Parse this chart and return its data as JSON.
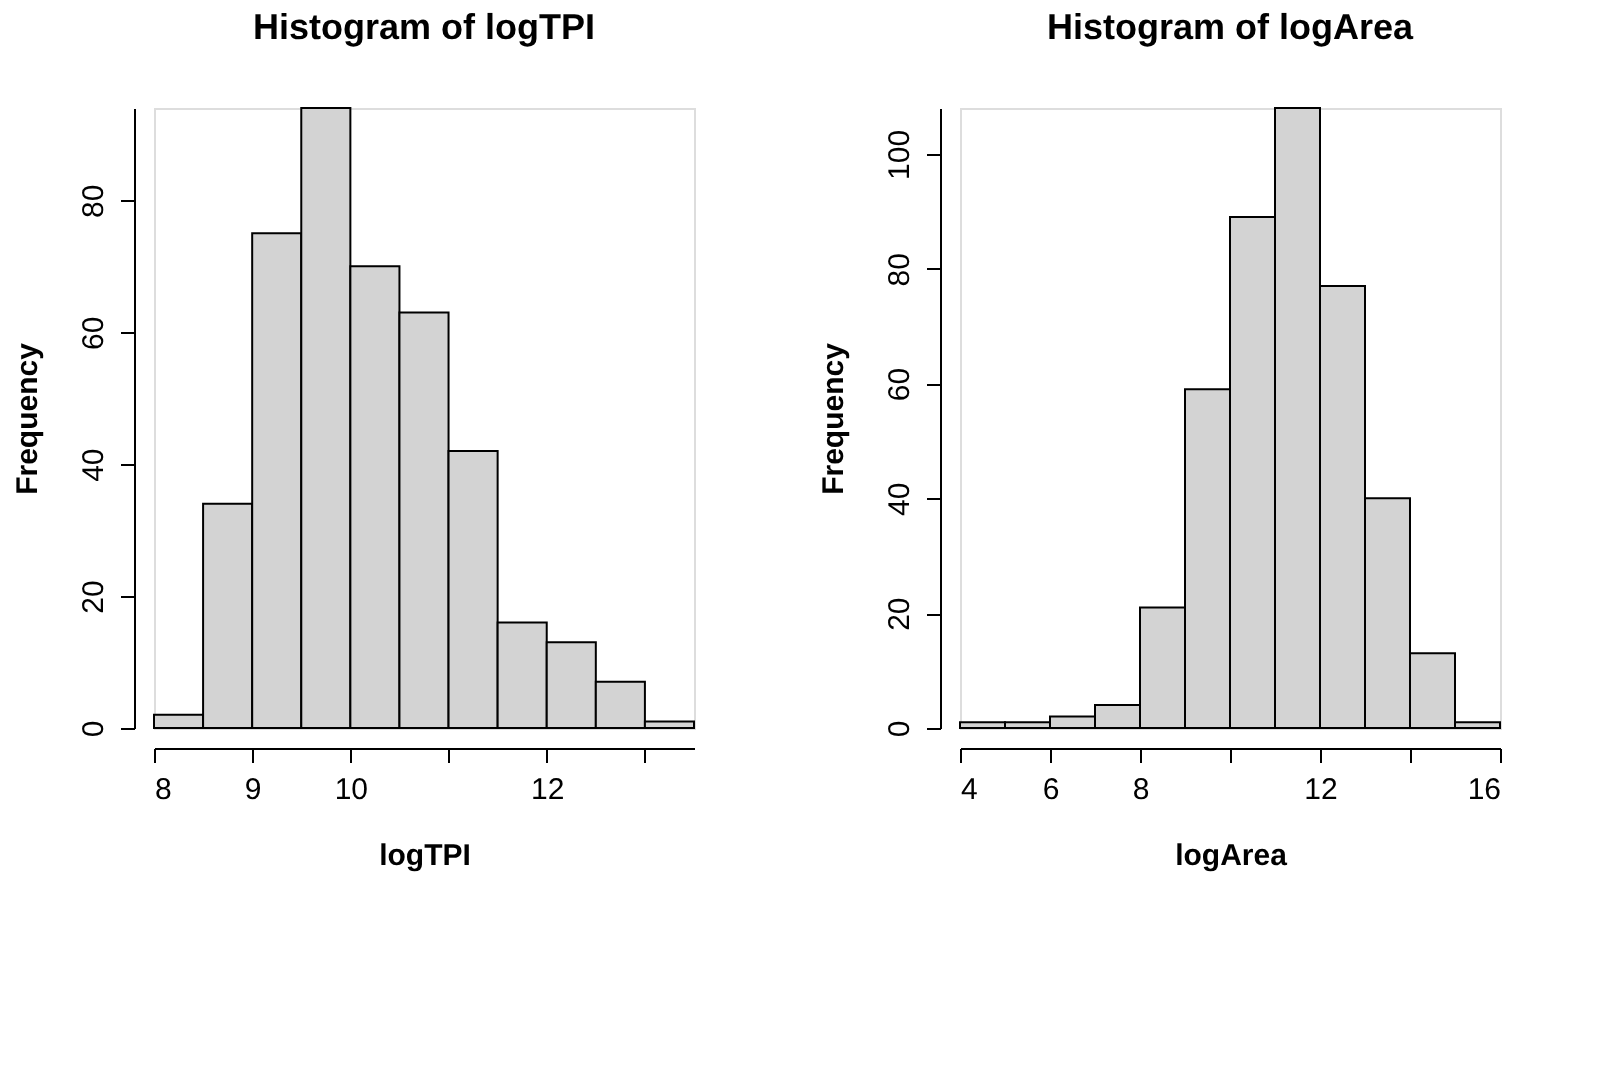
{
  "chart_data": [
    {
      "type": "histogram",
      "title": "Histogram of logTPI",
      "xlabel": "logTPI",
      "ylabel": "Frequency",
      "color": "#d3d3d3",
      "bins": [
        8,
        8.5,
        9,
        9.5,
        10,
        10.5,
        11,
        11.5,
        12,
        12.5,
        13,
        13.5
      ],
      "values": [
        2,
        34,
        75,
        94,
        70,
        63,
        42,
        16,
        13,
        7,
        1
      ],
      "xlim": [
        8,
        13.5
      ],
      "xticks": [
        8,
        9,
        10,
        {
          "value": 11,
          "label": null
        },
        12,
        {
          "value": 13,
          "label": null
        }
      ],
      "ylim": [
        0,
        94
      ],
      "yticks": [
        0,
        20,
        40,
        60,
        80
      ],
      "grid": false
    },
    {
      "type": "histogram",
      "title": "Histogram of logArea",
      "xlabel": "logArea",
      "ylabel": "Frequency",
      "color": "#d3d3d3",
      "bins": [
        4,
        5,
        6,
        7,
        8,
        9,
        10,
        11,
        12,
        13,
        14,
        15,
        16
      ],
      "values": [
        1,
        1,
        2,
        4,
        21,
        59,
        89,
        108,
        77,
        40,
        13,
        1
      ],
      "xlim": [
        4,
        16
      ],
      "xticks": [
        4,
        6,
        8,
        {
          "value": 10,
          "label": null
        },
        12,
        {
          "value": 14,
          "label": null
        },
        16
      ],
      "ylim": [
        0,
        108
      ],
      "yticks": [
        0,
        20,
        40,
        60,
        80,
        100
      ],
      "grid": false
    }
  ]
}
